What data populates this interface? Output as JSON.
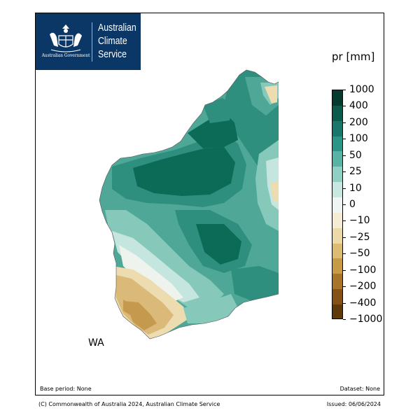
{
  "logo": {
    "lines": [
      "Australian",
      "Climate",
      "Service"
    ],
    "government": "Australian Government",
    "background": "#0b3766"
  },
  "legend": {
    "title": "pr [mm]",
    "ticks": [
      "1000",
      "400",
      "200",
      "100",
      "50",
      "25",
      "10",
      "0",
      "−10",
      "−25",
      "−50",
      "−100",
      "−200",
      "−400",
      "−1000"
    ],
    "colors": [
      "#053b2e",
      "#0a5b4b",
      "#18766a",
      "#2b9687",
      "#58b3a6",
      "#8fd0c3",
      "#c6e8e1",
      "#eef5f2",
      "#f5ecd6",
      "#ecd9a8",
      "#dcbc72",
      "#c79a45",
      "#a8742a",
      "#845216",
      "#5e3a0a"
    ]
  },
  "map": {
    "region_label": "WA",
    "palette": {
      "ocean": "#ffffff",
      "deep_teal": "#0c6b57",
      "teal": "#2f8f7e",
      "mid_teal": "#4fa897",
      "light_teal": "#86c9bb",
      "pale_teal": "#c5e6de",
      "neutral": "#eef3ee",
      "pale_tan": "#ecdcaf",
      "tan": "#dab979",
      "brown": "#c59a4f"
    }
  },
  "footer": {
    "base_period": "Base period: None",
    "dataset": "Dataset: None",
    "copyright": "(C) Commonwealth of Australia 2024, Australian Climate Service",
    "issued": "Issued: 06/06/2024"
  }
}
